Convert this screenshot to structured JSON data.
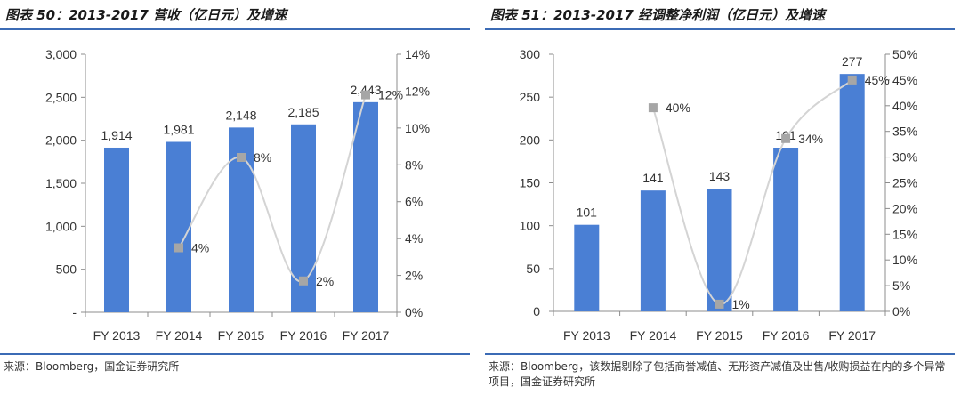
{
  "left": {
    "title": "图表 50：2013-2017 营收（亿日元）及增速",
    "source": "来源：Bloomberg，国金证券研究所"
  },
  "right": {
    "title": "图表 51：2013-2017 经调整净利润（亿日元）及增速",
    "source": "来源：Bloomberg，该数据剔除了包括商誉减值、无形资产减值及出售/收购损益在内的多个异常项目，国金证券研究所"
  },
  "colors": {
    "bar": "#4a7fd4",
    "line": "#d4d4d4",
    "marker": "#a6a6a6",
    "axis": "#8c8c8c",
    "rule": "#3b6bb5"
  },
  "chart_data": [
    {
      "type": "bar",
      "title": "图表 50：2013-2017 营收（亿日元）及增速",
      "categories": [
        "FY 2013",
        "FY 2014",
        "FY 2015",
        "FY 2016",
        "FY 2017"
      ],
      "values": [
        1914,
        1981,
        2148,
        2185,
        2443
      ],
      "value_labels": [
        "1,914",
        "1,981",
        "2,148",
        "2,185",
        "2,443"
      ],
      "ylim": [
        0,
        3000
      ],
      "yticks": [
        0,
        500,
        1000,
        1500,
        2000,
        2500,
        3000
      ],
      "ytick_labels": [
        "-",
        "500",
        "1,000",
        "1,500",
        "2,000",
        "2,500",
        "3,000"
      ],
      "growth": {
        "type": "line",
        "categories": [
          "FY 2014",
          "FY 2015",
          "FY 2016",
          "FY 2017"
        ],
        "values": [
          3.5,
          8.4,
          1.7,
          11.8
        ],
        "labels": [
          "4%",
          "8%",
          "2%",
          "12%"
        ],
        "ylim": [
          0,
          14
        ],
        "yticks": [
          0,
          2,
          4,
          6,
          8,
          10,
          12,
          14
        ],
        "ytick_labels": [
          "0%",
          "2%",
          "4%",
          "6%",
          "8%",
          "10%",
          "12%",
          "14%"
        ]
      }
    },
    {
      "type": "bar",
      "title": "图表 51：2013-2017 经调整净利润（亿日元）及增速",
      "categories": [
        "FY 2013",
        "FY 2014",
        "FY 2015",
        "FY 2016",
        "FY 2017"
      ],
      "values": [
        101,
        141,
        143,
        191,
        277
      ],
      "value_labels": [
        "101",
        "141",
        "143",
        "191",
        "277"
      ],
      "ylim": [
        0,
        300
      ],
      "yticks": [
        0,
        50,
        100,
        150,
        200,
        250,
        300
      ],
      "ytick_labels": [
        "0",
        "50",
        "100",
        "150",
        "200",
        "250",
        "300"
      ],
      "growth": {
        "type": "line",
        "categories": [
          "FY 2014",
          "FY 2015",
          "FY 2016",
          "FY 2017"
        ],
        "values": [
          39.6,
          1.4,
          33.6,
          45.0
        ],
        "labels": [
          "40%",
          "1%",
          "34%",
          "45%"
        ],
        "ylim": [
          0,
          50
        ],
        "yticks": [
          0,
          5,
          10,
          15,
          20,
          25,
          30,
          35,
          40,
          45,
          50
        ],
        "ytick_labels": [
          "0%",
          "5%",
          "10%",
          "15%",
          "20%",
          "25%",
          "30%",
          "35%",
          "40%",
          "45%",
          "50%"
        ]
      }
    }
  ]
}
